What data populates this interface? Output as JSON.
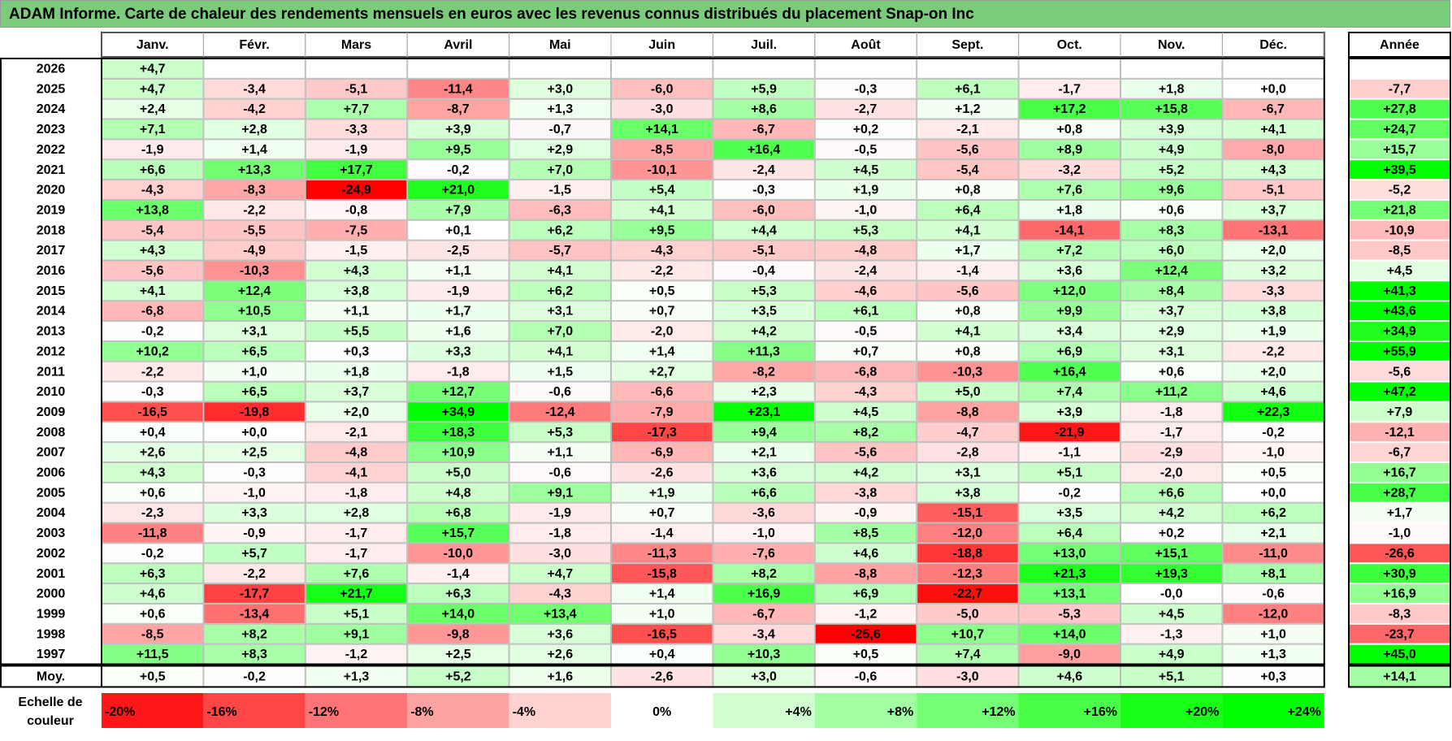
{
  "title": "ADAM Informe. Carte de chaleur des rendements mensuels en euros avec les revenus connus distribués du placement Snap-on Inc",
  "colors": {
    "title_bg": "#7acb7a",
    "positive_max": "#00ff00",
    "negative_max": "#ff0000",
    "neutral": "#ffffff",
    "border": "#000000",
    "grid": "#a6a6a6"
  },
  "chart_data": {
    "type": "heatmap",
    "title": "ADAM Informe. Carte de chaleur des rendements mensuels en euros avec les revenus connus distribués du placement Snap-on Inc",
    "months": [
      "Janv.",
      "Févr.",
      "Mars",
      "Avril",
      "Mai",
      "Juin",
      "Juil.",
      "Août",
      "Sept.",
      "Oct.",
      "Nov.",
      "Déc."
    ],
    "year_header": "Année",
    "rows": [
      {
        "year": "2026",
        "values": [
          "+4,7",
          "",
          "",
          "",
          "",
          "",
          "",
          "",
          "",
          "",
          "",
          ""
        ],
        "annual": ""
      },
      {
        "year": "2025",
        "values": [
          "+4,7",
          "-3,4",
          "-5,1",
          "-11,4",
          "+3,0",
          "-6,0",
          "+5,9",
          "-0,3",
          "+6,1",
          "-1,7",
          "+1,8",
          "+0,0"
        ],
        "annual": "-7,7"
      },
      {
        "year": "2024",
        "values": [
          "+2,4",
          "-4,2",
          "+7,7",
          "-8,7",
          "+1,3",
          "-3,0",
          "+8,6",
          "-2,7",
          "+1,2",
          "+17,2",
          "+15,8",
          "-6,7"
        ],
        "annual": "+27,8"
      },
      {
        "year": "2023",
        "values": [
          "+7,1",
          "+2,8",
          "-3,3",
          "+3,9",
          "-0,7",
          "+14,1",
          "-6,7",
          "+0,2",
          "-2,1",
          "+0,8",
          "+3,9",
          "+4,1"
        ],
        "annual": "+24,7"
      },
      {
        "year": "2022",
        "values": [
          "-1,9",
          "+1,4",
          "-1,9",
          "+9,5",
          "+2,9",
          "-8,5",
          "+16,4",
          "-0,5",
          "-5,6",
          "+8,9",
          "+4,9",
          "-8,0"
        ],
        "annual": "+15,7"
      },
      {
        "year": "2021",
        "values": [
          "+6,6",
          "+13,3",
          "+17,7",
          "-0,2",
          "+7,0",
          "-10,1",
          "-2,4",
          "+4,5",
          "-5,4",
          "-3,2",
          "+5,2",
          "+4,3"
        ],
        "annual": "+39,5"
      },
      {
        "year": "2020",
        "values": [
          "-4,3",
          "-8,3",
          "-24,9",
          "+21,0",
          "-1,5",
          "+5,4",
          "-0,3",
          "+1,9",
          "+0,8",
          "+7,6",
          "+9,6",
          "-5,1"
        ],
        "annual": "-5,2"
      },
      {
        "year": "2019",
        "values": [
          "+13,8",
          "-2,2",
          "-0,8",
          "+7,9",
          "-6,3",
          "+4,1",
          "-6,0",
          "-1,0",
          "+6,4",
          "+1,8",
          "+0,6",
          "+3,7"
        ],
        "annual": "+21,8"
      },
      {
        "year": "2018",
        "values": [
          "-5,4",
          "-5,5",
          "-7,5",
          "+0,1",
          "+6,2",
          "+9,5",
          "+4,4",
          "+5,3",
          "+4,1",
          "-14,1",
          "+8,3",
          "-13,1"
        ],
        "annual": "-10,9"
      },
      {
        "year": "2017",
        "values": [
          "+4,3",
          "-4,9",
          "-1,5",
          "-2,5",
          "-5,7",
          "-4,3",
          "-5,1",
          "-4,8",
          "+1,7",
          "+7,2",
          "+6,0",
          "+2,0"
        ],
        "annual": "-8,5"
      },
      {
        "year": "2016",
        "values": [
          "-5,6",
          "-10,3",
          "+4,3",
          "+1,1",
          "+4,1",
          "-2,2",
          "-0,4",
          "-2,4",
          "-1,4",
          "+3,6",
          "+12,4",
          "+3,2"
        ],
        "annual": "+4,5"
      },
      {
        "year": "2015",
        "values": [
          "+4,1",
          "+12,4",
          "+3,8",
          "-1,9",
          "+6,2",
          "+0,5",
          "+5,3",
          "-4,6",
          "-5,6",
          "+12,0",
          "+8,4",
          "-3,3"
        ],
        "annual": "+41,3"
      },
      {
        "year": "2014",
        "values": [
          "-6,8",
          "+10,5",
          "+1,1",
          "+1,7",
          "+3,1",
          "+0,7",
          "+3,5",
          "+6,1",
          "+0,8",
          "+9,9",
          "+3,7",
          "+3,8"
        ],
        "annual": "+43,6"
      },
      {
        "year": "2013",
        "values": [
          "-0,2",
          "+3,1",
          "+5,5",
          "+1,6",
          "+7,0",
          "-2,0",
          "+4,2",
          "-0,5",
          "+4,1",
          "+3,4",
          "+2,9",
          "+1,9"
        ],
        "annual": "+34,9"
      },
      {
        "year": "2012",
        "values": [
          "+10,2",
          "+6,5",
          "+0,3",
          "+3,3",
          "+4,1",
          "+1,4",
          "+11,3",
          "+0,7",
          "+0,8",
          "+6,9",
          "+3,1",
          "-2,2"
        ],
        "annual": "+55,9"
      },
      {
        "year": "2011",
        "values": [
          "-2,2",
          "+1,0",
          "+1,8",
          "-1,8",
          "+1,5",
          "+2,7",
          "-8,2",
          "-6,8",
          "-10,3",
          "+16,4",
          "+0,6",
          "+2,0"
        ],
        "annual": "-5,6"
      },
      {
        "year": "2010",
        "values": [
          "-0,3",
          "+6,5",
          "+3,7",
          "+12,7",
          "-0,6",
          "-6,6",
          "+2,3",
          "-4,3",
          "+5,0",
          "+7,4",
          "+11,2",
          "+4,6"
        ],
        "annual": "+47,2"
      },
      {
        "year": "2009",
        "values": [
          "-16,5",
          "-19,8",
          "+2,0",
          "+34,9",
          "-12,4",
          "-7,9",
          "+23,1",
          "+4,5",
          "-8,8",
          "+3,9",
          "-1,8",
          "+22,3"
        ],
        "annual": "+7,9"
      },
      {
        "year": "2008",
        "values": [
          "+0,4",
          "+0,0",
          "-2,1",
          "+18,3",
          "+5,3",
          "-17,3",
          "+9,4",
          "+8,2",
          "-4,7",
          "-21,9",
          "-1,7",
          "-0,2"
        ],
        "annual": "-12,1"
      },
      {
        "year": "2007",
        "values": [
          "+2,6",
          "+2,5",
          "-4,8",
          "+10,9",
          "+1,1",
          "-6,9",
          "+2,1",
          "-5,6",
          "-2,8",
          "-1,1",
          "-2,9",
          "-1,0"
        ],
        "annual": "-6,7"
      },
      {
        "year": "2006",
        "values": [
          "+4,3",
          "-0,3",
          "-4,1",
          "+5,0",
          "-0,6",
          "-2,6",
          "+3,6",
          "+4,2",
          "+3,1",
          "+5,1",
          "-2,0",
          "+0,5"
        ],
        "annual": "+16,7"
      },
      {
        "year": "2005",
        "values": [
          "+0,6",
          "-1,0",
          "-1,8",
          "+4,8",
          "+9,1",
          "+1,9",
          "+6,6",
          "-3,8",
          "+3,8",
          "-0,2",
          "+6,6",
          "+0,0"
        ],
        "annual": "+28,7"
      },
      {
        "year": "2004",
        "values": [
          "-2,3",
          "+3,3",
          "+2,8",
          "+6,8",
          "-1,9",
          "+0,7",
          "-3,6",
          "-0,9",
          "-15,1",
          "+3,5",
          "+4,2",
          "+6,2"
        ],
        "annual": "+1,7"
      },
      {
        "year": "2003",
        "values": [
          "-11,8",
          "-0,9",
          "-1,7",
          "+15,7",
          "-1,8",
          "-1,4",
          "-1,0",
          "+8,5",
          "-12,0",
          "+6,4",
          "+0,2",
          "+2,1"
        ],
        "annual": "-1,0"
      },
      {
        "year": "2002",
        "values": [
          "-0,2",
          "+5,7",
          "-1,7",
          "-10,0",
          "-3,0",
          "-11,3",
          "-7,6",
          "+4,6",
          "-18,8",
          "+13,0",
          "+15,1",
          "-11,0"
        ],
        "annual": "-26,6"
      },
      {
        "year": "2001",
        "values": [
          "+6,3",
          "-2,2",
          "+7,6",
          "-1,4",
          "+4,7",
          "-15,8",
          "+8,2",
          "-8,8",
          "-12,3",
          "+21,3",
          "+19,3",
          "+8,1"
        ],
        "annual": "+30,9"
      },
      {
        "year": "2000",
        "values": [
          "+4,6",
          "-17,7",
          "+21,7",
          "+6,3",
          "-4,3",
          "+1,4",
          "+16,9",
          "+6,9",
          "-22,7",
          "+13,1",
          "-0,0",
          "-0,6"
        ],
        "annual": "+16,9"
      },
      {
        "year": "1999",
        "values": [
          "+0,6",
          "-13,4",
          "+5,1",
          "+14,0",
          "+13,4",
          "+1,0",
          "-6,7",
          "-1,2",
          "-5,0",
          "-5,3",
          "+4,5",
          "-12,0"
        ],
        "annual": "-8,3"
      },
      {
        "year": "1998",
        "values": [
          "-8,5",
          "+8,2",
          "+9,1",
          "-9,8",
          "+3,6",
          "-16,5",
          "-3,4",
          "-25,6",
          "+10,7",
          "+14,0",
          "-1,3",
          "+1,0"
        ],
        "annual": "-23,7"
      },
      {
        "year": "1997",
        "values": [
          "+11,5",
          "+8,3",
          "-1,2",
          "+2,5",
          "+2,6",
          "+0,4",
          "+10,3",
          "+0,5",
          "+7,4",
          "-9,0",
          "+4,9",
          "+1,3"
        ],
        "annual": "+45,0"
      }
    ],
    "average": {
      "label": "Moy.",
      "values": [
        "+0,5",
        "-0,2",
        "+1,3",
        "+5,2",
        "+1,6",
        "-2,6",
        "+3,0",
        "-0,6",
        "-3,0",
        "+4,6",
        "+5,1",
        "+0,3"
      ],
      "annual": "+14,1"
    },
    "scale": {
      "label_line1": "Echelle de",
      "label_line2": "couleur",
      "stops": [
        {
          "label": "-20%",
          "value": -20
        },
        {
          "label": "-16%",
          "value": -16
        },
        {
          "label": "-12%",
          "value": -12
        },
        {
          "label": "-8%",
          "value": -8
        },
        {
          "label": "-4%",
          "value": -4
        },
        {
          "label": "0%",
          "value": 0
        },
        {
          "label": "+4%",
          "value": 4
        },
        {
          "label": "+8%",
          "value": 8
        },
        {
          "label": "+12%",
          "value": 12
        },
        {
          "label": "+16%",
          "value": 16
        },
        {
          "label": "+20%",
          "value": 20
        },
        {
          "label": "+24%",
          "value": 24
        }
      ]
    }
  }
}
